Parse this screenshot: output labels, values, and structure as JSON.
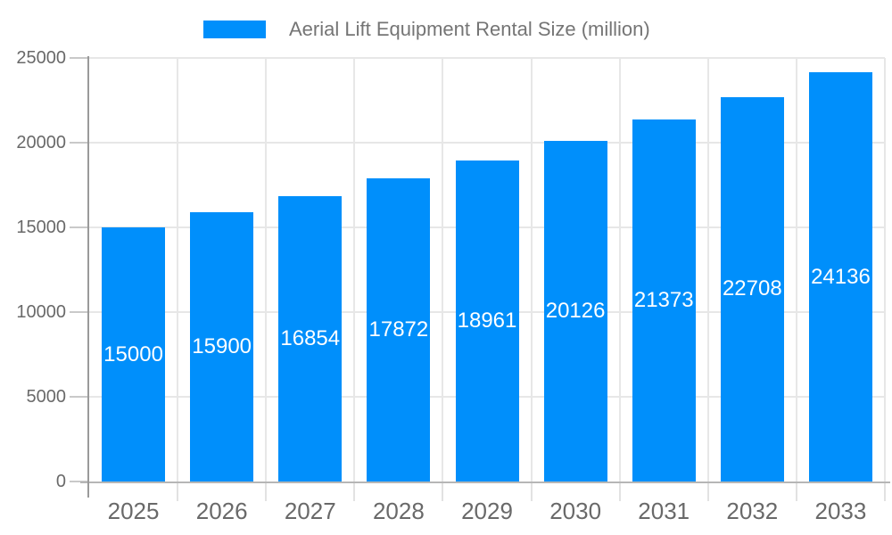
{
  "chart_data": {
    "type": "bar",
    "title": "Aerial Lift Equipment Rental Size (million)",
    "categories": [
      "2025",
      "2026",
      "2027",
      "2028",
      "2029",
      "2030",
      "2031",
      "2032",
      "2033"
    ],
    "series": [
      {
        "name": "Aerial Lift Equipment Rental Size (million)",
        "values": [
          15000,
          15900,
          16854,
          17872,
          18961,
          20126,
          21373,
          22708,
          24136
        ]
      }
    ],
    "data_labels": [
      "15000",
      "15900",
      "16854",
      "17872",
      "18961",
      "20126",
      "21373",
      "22708",
      "24136"
    ],
    "xlabel": "",
    "ylabel": "",
    "ylim": [
      0,
      25000
    ],
    "ytick_step": 5000,
    "ytick_labels": [
      "0",
      "5000",
      "10000",
      "15000",
      "20000",
      "25000"
    ],
    "grid": {
      "horizontal": true,
      "vertical": true
    },
    "legend_position": "top",
    "colors": {
      "bar": "#008FFB",
      "data_label": "#FFFFFF",
      "axis_label": "#696969",
      "legend_text": "#757575",
      "gridline": "#E7E7E7",
      "x_axis_line": "#B6B6B6",
      "y_axis_line": "#9A9A9A",
      "y_tick": "#C9C9C9",
      "x_tick": "#E2E2E2",
      "background": "#FFFFFF"
    }
  }
}
